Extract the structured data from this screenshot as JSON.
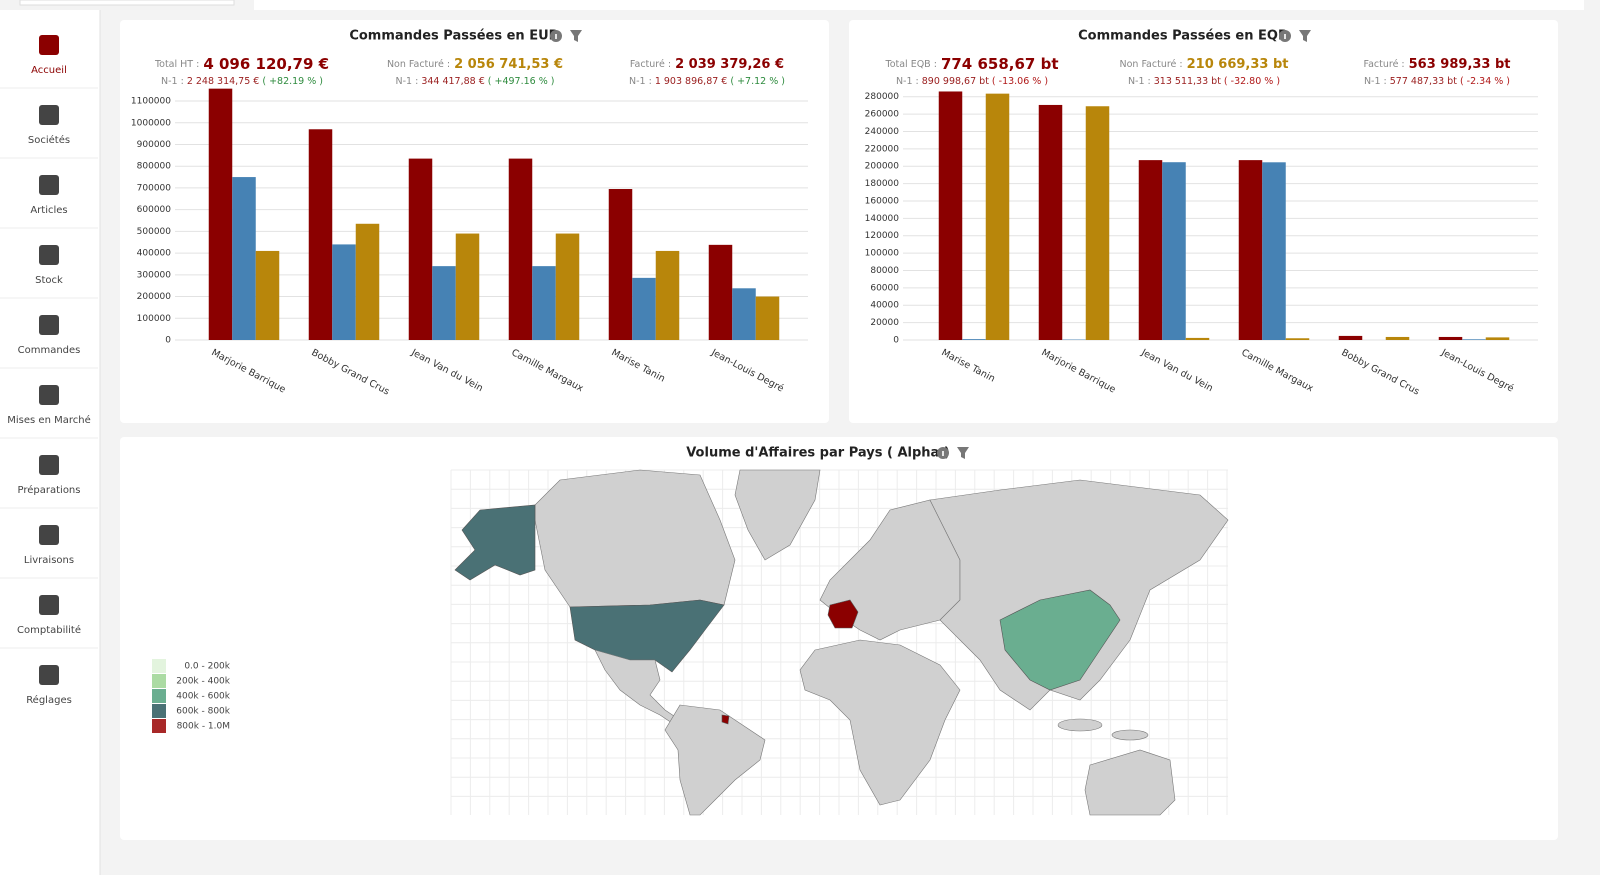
{
  "sidebar": {
    "items": [
      "Accueil",
      "Sociétés",
      "Articles",
      "Stock",
      "Commandes",
      "Mises en Marché",
      "Préparations",
      "Livraisons",
      "Comptabilité",
      "Réglages"
    ]
  },
  "panels": [
    {
      "title": "Commandes Passées en EUR",
      "stats": [
        {
          "label": "Total HT :",
          "value": "4 096 120,79 €",
          "n1_label": "N-1 :",
          "n1_value": "2 248 314,75 €",
          "n1_change": "( +82.19 % )"
        },
        {
          "label": "Non Facturé :",
          "value": "2 056 741,53 €",
          "n1_label": "N-1 :",
          "n1_value": "344 417,88 €",
          "n1_change": "( +497.16 % )"
        },
        {
          "label": "Facturé :",
          "value": "2 039 379,26 €",
          "n1_label": "N-1 :",
          "n1_value": "1 903 896,87 €",
          "n1_change": "( +7.12 % )"
        }
      ],
      "chart": {
        "type": "bar",
        "categories": [
          "Marjorie Barrique",
          "Bobby Grand Crus",
          "Jean Van du Vein",
          "Camille Margaux",
          "Marise Tanin",
          "Jean-Louis Degré"
        ],
        "series": [
          {
            "color": "#8b0000",
            "values": [
              1157000,
              970000,
              835000,
              835000,
              695000,
              438000
            ]
          },
          {
            "color": "#4682b4",
            "values": [
              750000,
              440000,
              340000,
              340000,
              286000,
              238000
            ]
          },
          {
            "color": "#b8860b",
            "values": [
              410000,
              535000,
              490000,
              490000,
              410000,
              200000
            ]
          }
        ],
        "ylim": [
          0,
          1160000
        ],
        "yticks": [
          0,
          100000,
          200000,
          300000,
          400000,
          500000,
          600000,
          700000,
          800000,
          900000,
          1000000,
          1100000
        ],
        "grid": true
      }
    },
    {
      "title": "Commandes Passées en EQB",
      "stats": [
        {
          "label": "Total EQB :",
          "value": "774 658,67 bt",
          "n1_label": "N-1 :",
          "n1_value": "890 998,67 bt",
          "n1_change": "( -13.06 % )"
        },
        {
          "label": "Non Facturé :",
          "value": "210 669,33 bt",
          "n1_label": "N-1 :",
          "n1_value": "313 511,33 bt",
          "n1_change": "( -32.80 % )"
        },
        {
          "label": "Facturé :",
          "value": "563 989,33 bt",
          "n1_label": "N-1 :",
          "n1_value": "577 487,33 bt",
          "n1_change": "( -2.34 % )"
        }
      ],
      "chart": {
        "type": "bar",
        "categories": [
          "Marise Tanin",
          "Marjorie Barrique",
          "Jean Van du Vein",
          "Camille Margaux",
          "Bobby Grand Crus",
          "Jean-Louis Degré"
        ],
        "series": [
          {
            "color": "#8b0000",
            "values": [
              286000,
              270500,
              207000,
              207000,
              4700,
              3500
            ]
          },
          {
            "color": "#4682b4",
            "values": [
              1000,
              500,
              204600,
              204500,
              0,
              800
            ]
          },
          {
            "color": "#b8860b",
            "values": [
              283500,
              269000,
              2400,
              2000,
              3500,
              3000
            ]
          }
        ],
        "ylim": [
          0,
          290000
        ],
        "yticks": [
          0,
          20000,
          40000,
          60000,
          80000,
          100000,
          120000,
          140000,
          160000,
          180000,
          200000,
          220000,
          240000,
          260000,
          280000
        ],
        "grid": true
      }
    }
  ],
  "map_panel": {
    "title": "Volume d'Affaires par Pays ( Alpha )",
    "legend": [
      {
        "label": "0.0 - 200k",
        "color": "#e3f4de"
      },
      {
        "label": "200k - 400k",
        "color": "#abdba3"
      },
      {
        "label": "400k - 600k",
        "color": "#6aae90"
      },
      {
        "label": "600k - 800k",
        "color": "#4a7175"
      },
      {
        "label": "800k - 1.0M",
        "color": "#a82828"
      }
    ]
  }
}
